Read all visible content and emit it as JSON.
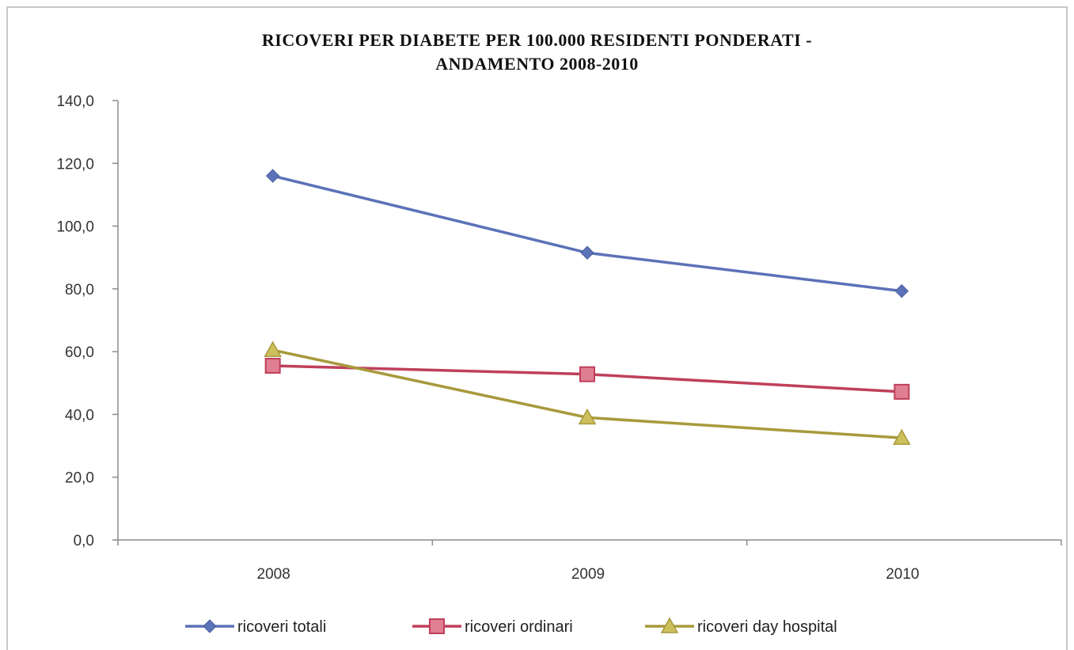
{
  "chart_data": {
    "type": "line",
    "title": "RICOVERI PER DIABETE PER 100.000 RESIDENTI PONDERATI - ANDAMENTO 2008-2010",
    "title_lines": [
      "RICOVERI PER DIABETE PER 100.000 RESIDENTI PONDERATI -",
      "ANDAMENTO 2008-2010"
    ],
    "xlabel": "",
    "ylabel": "",
    "categories": [
      "2008",
      "2009",
      "2010"
    ],
    "ylim": [
      0,
      140
    ],
    "y_ticks": [
      0,
      20,
      40,
      60,
      80,
      100,
      120,
      140
    ],
    "y_tick_labels": [
      "0,0",
      "20,0",
      "40,0",
      "60,0",
      "80,0",
      "100,0",
      "120,0",
      "140,0"
    ],
    "grid": false,
    "legend_position": "bottom",
    "series": [
      {
        "name": "ricoveri totali",
        "values": [
          116.0,
          91.5,
          79.3
        ],
        "color": "#5b72b8",
        "marker": "diamond"
      },
      {
        "name": "ricoveri ordinari",
        "values": [
          55.5,
          52.8,
          47.2
        ],
        "color": "#bf3f5a",
        "marker": "square"
      },
      {
        "name": "ricoveri day hospital",
        "values": [
          60.5,
          39.0,
          32.5
        ],
        "color": "#a89a3c",
        "marker": "triangle"
      }
    ]
  }
}
